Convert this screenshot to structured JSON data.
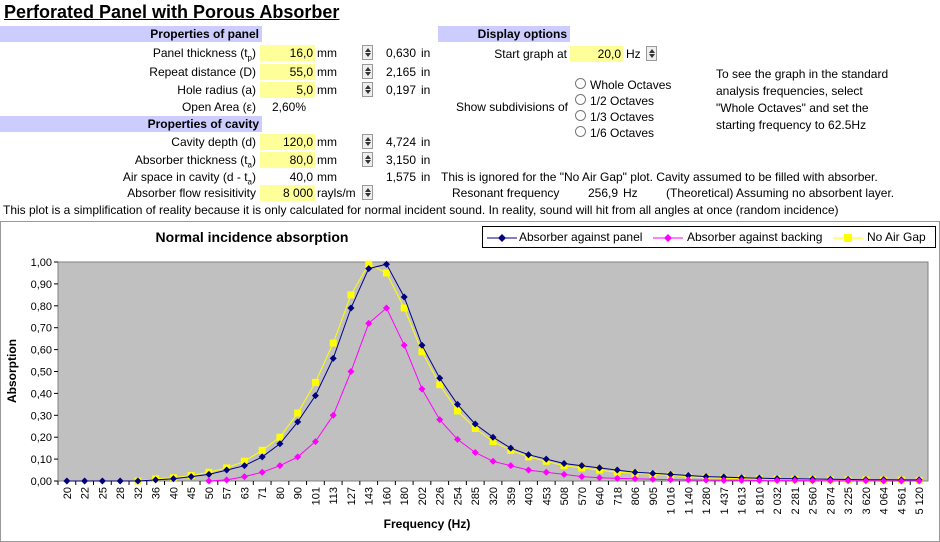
{
  "title": "Perforated Panel with Porous Absorber",
  "panel": {
    "header": "Properties of panel",
    "rows": [
      {
        "label": "Panel thickness (t",
        "sub": "p",
        ")": "",
        "label_end": ")",
        "value": "16,0",
        "unit": "mm",
        "inches": "0,630",
        "in_unit": "in"
      },
      {
        "label": "Repeat distance (D)",
        "sub": "",
        "label_end": "",
        "value": "55,0",
        "unit": "mm",
        "inches": "2,165",
        "in_unit": "in"
      },
      {
        "label": "Hole radius (a)",
        "sub": "",
        "label_end": "",
        "value": "5,0",
        "unit": "mm",
        "inches": "0,197",
        "in_unit": "in"
      }
    ],
    "open_area_label": "Open Area (ε)",
    "open_area_value": "2,60%"
  },
  "cavity": {
    "header": "Properties of cavity",
    "depth_label": "Cavity depth (d)",
    "depth_value": "120,0",
    "depth_unit": "mm",
    "depth_in": "4,724",
    "abs_label": "Absorber thickness (t",
    "abs_sub": "a",
    "abs_end": ")",
    "abs_value": "80,0",
    "abs_unit": "mm",
    "abs_in": "3,150",
    "air_label": "Air space in cavity (d - t",
    "air_sub": "a",
    "air_end": ")",
    "air_value": "40,0",
    "air_unit": "mm",
    "air_in": "1,575",
    "flow_label": "Absorber flow resisitivity",
    "flow_value": "8 000",
    "flow_unit": "rayls/m",
    "in_unit": "in"
  },
  "display": {
    "header": "Display options",
    "start_label": "Start graph at",
    "start_value": "20,0",
    "start_unit": "Hz",
    "subdiv_label": "Show subdivisions of",
    "options": [
      "Whole Octaves",
      "1/2 Octaves",
      "1/3 Octaves",
      "1/6 Octaves"
    ],
    "help": [
      "To see the graph in the standard",
      "analysis frequencies, select",
      "\"Whole Octaves\" and set the",
      "starting frequency to 62.5Hz"
    ]
  },
  "notes": {
    "ignored": "This is ignored for the \"No Air Gap\" plot.  Cavity assumed to be filled with absorber.",
    "resonant_label": "Resonant frequency",
    "resonant_value": "256,9",
    "resonant_unit": "Hz",
    "resonant_note": "(Theoretical) Assuming no absorbent layer.",
    "simplification": "This plot is a simplification of reality because it is only calculated for normal incident sound.  In reality, sound will hit from all angles at once (random incidence)"
  },
  "chart_data": {
    "type": "line",
    "title": "Normal incidence absorption",
    "xlabel": "Frequency (Hz)",
    "ylabel": "Absorption",
    "ylim": [
      0,
      1
    ],
    "yticks": [
      "0,00",
      "0,10",
      "0,20",
      "0,30",
      "0,40",
      "0,50",
      "0,60",
      "0,70",
      "0,80",
      "0,90",
      "1,00"
    ],
    "grid": false,
    "plot_bg": "#c0c0c0",
    "legend_position": "top-right",
    "categories": [
      "20",
      "22",
      "25",
      "28",
      "32",
      "36",
      "40",
      "45",
      "50",
      "57",
      "63",
      "71",
      "80",
      "90",
      "101",
      "113",
      "127",
      "143",
      "160",
      "180",
      "202",
      "226",
      "254",
      "285",
      "320",
      "359",
      "403",
      "453",
      "508",
      "570",
      "640",
      "718",
      "806",
      "905",
      "1 016",
      "1 140",
      "1 280",
      "1 437",
      "1 613",
      "1 810",
      "2 032",
      "2 281",
      "2 560",
      "2 874",
      "3 225",
      "3 620",
      "4 064",
      "4 561",
      "5 120"
    ],
    "series": [
      {
        "name": "Absorber against panel",
        "color": "#000080",
        "marker": "diamond",
        "values": [
          0.0,
          0.0,
          0.0,
          0.0,
          0.0,
          0.005,
          0.01,
          0.02,
          0.03,
          0.05,
          0.07,
          0.11,
          0.17,
          0.27,
          0.39,
          0.56,
          0.79,
          0.97,
          0.99,
          0.84,
          0.62,
          0.47,
          0.35,
          0.26,
          0.2,
          0.15,
          0.12,
          0.1,
          0.08,
          0.07,
          0.06,
          0.05,
          0.04,
          0.035,
          0.03,
          0.025,
          0.02,
          0.018,
          0.015,
          0.013,
          0.011,
          0.01,
          0.009,
          0.008,
          0.007,
          0.006,
          0.006,
          0.005,
          0.005
        ]
      },
      {
        "name": "Absorber against backing",
        "color": "#ff00ff",
        "marker": "diamond",
        "values": [
          null,
          null,
          null,
          null,
          null,
          null,
          null,
          null,
          0.0,
          0.005,
          0.02,
          0.04,
          0.07,
          0.11,
          0.18,
          0.3,
          0.5,
          0.72,
          0.79,
          0.62,
          0.42,
          0.28,
          0.19,
          0.13,
          0.09,
          0.07,
          0.05,
          0.04,
          0.03,
          0.02,
          0.015,
          0.012,
          0.01,
          0.008,
          0.006,
          0.005,
          0.004,
          0.003,
          0.003,
          0.002,
          0.002,
          0.002,
          0.001,
          0.001,
          0.001,
          0.001,
          0.0,
          0.0,
          0.0
        ]
      },
      {
        "name": "No Air Gap",
        "color": "#ffff00",
        "marker": "square",
        "values": [
          null,
          null,
          null,
          null,
          0.0,
          0.01,
          0.015,
          0.025,
          0.04,
          0.06,
          0.09,
          0.14,
          0.2,
          0.31,
          0.45,
          0.63,
          0.85,
          0.99,
          0.95,
          0.79,
          0.59,
          0.44,
          0.32,
          0.24,
          0.18,
          0.14,
          0.11,
          0.09,
          0.07,
          0.06,
          0.05,
          0.04,
          0.035,
          0.03,
          0.025,
          0.02,
          0.015,
          0.013,
          0.011,
          0.01,
          0.009,
          0.008,
          0.007,
          0.006,
          0.005,
          0.005,
          0.004,
          0.004,
          0.003
        ]
      }
    ]
  }
}
